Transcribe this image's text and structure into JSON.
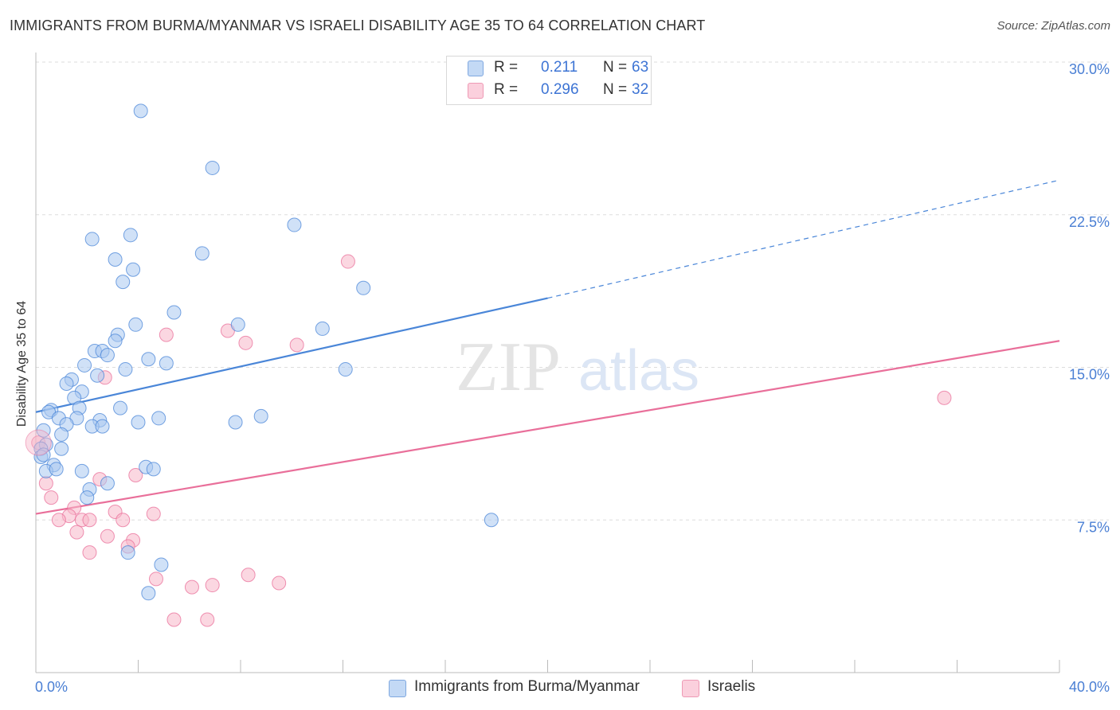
{
  "title": "IMMIGRANTS FROM BURMA/MYANMAR VS ISRAELI DISABILITY AGE 35 TO 64 CORRELATION CHART",
  "source": "Source: ZipAtlas.com",
  "watermark": {
    "zip": "ZIP",
    "atlas": "atlas"
  },
  "legend": {
    "rows": [
      {
        "r_label": "R =",
        "r_value": "0.211",
        "n_label": "N =",
        "n_value": "63",
        "color": "#a9c8f0"
      },
      {
        "r_label": "R =",
        "r_value": "0.296",
        "n_label": "N =",
        "n_value": "32",
        "color": "#f7b6c9"
      }
    ]
  },
  "bottom_legend": [
    {
      "label": "Immigrants from Burma/Myanmar",
      "color": "#a9c8f0"
    },
    {
      "label": "Israelis",
      "color": "#f7b6c9"
    }
  ],
  "chart_data": {
    "type": "scatter",
    "title": "IMMIGRANTS FROM BURMA/MYANMAR VS ISRAELI DISABILITY AGE 35 TO 64 CORRELATION CHART",
    "xlabel": "",
    "ylabel": "Disability Age 35 to 64",
    "xlim": [
      0,
      40
    ],
    "ylim": [
      0,
      30
    ],
    "x_tick_labels": [
      "0.0%",
      "40.0%"
    ],
    "y_ticks": [
      7.5,
      15.0,
      22.5,
      30.0
    ],
    "y_tick_labels": [
      "7.5%",
      "15.0%",
      "22.5%",
      "30.0%"
    ],
    "grid": true,
    "legend_position": "top-center",
    "series": [
      {
        "name": "Immigrants from Burma/Myanmar",
        "color": "#4a86d8",
        "fill": "#a9c8f0",
        "trend": {
          "x": [
            0,
            20
          ],
          "y": [
            12.8,
            18.4
          ],
          "dashed_to": [
            40,
            24.2
          ]
        },
        "points": [
          [
            4.1,
            27.6
          ],
          [
            6.9,
            24.8
          ],
          [
            10.1,
            22.0
          ],
          [
            2.2,
            21.3
          ],
          [
            3.7,
            21.5
          ],
          [
            3.1,
            20.3
          ],
          [
            6.5,
            20.6
          ],
          [
            3.8,
            19.8
          ],
          [
            3.4,
            19.2
          ],
          [
            12.8,
            18.9
          ],
          [
            5.4,
            17.7
          ],
          [
            3.9,
            17.1
          ],
          [
            7.9,
            17.1
          ],
          [
            11.2,
            16.9
          ],
          [
            3.2,
            16.6
          ],
          [
            3.1,
            16.3
          ],
          [
            2.3,
            15.8
          ],
          [
            2.6,
            15.8
          ],
          [
            2.8,
            15.6
          ],
          [
            4.4,
            15.4
          ],
          [
            5.1,
            15.2
          ],
          [
            1.9,
            15.1
          ],
          [
            3.5,
            14.9
          ],
          [
            12.1,
            14.9
          ],
          [
            2.4,
            14.6
          ],
          [
            1.4,
            14.4
          ],
          [
            1.2,
            14.2
          ],
          [
            1.8,
            13.8
          ],
          [
            1.5,
            13.5
          ],
          [
            1.7,
            13.0
          ],
          [
            3.3,
            13.0
          ],
          [
            0.6,
            12.9
          ],
          [
            0.5,
            12.8
          ],
          [
            0.9,
            12.5
          ],
          [
            1.6,
            12.5
          ],
          [
            4.8,
            12.5
          ],
          [
            8.8,
            12.6
          ],
          [
            2.5,
            12.4
          ],
          [
            1.2,
            12.2
          ],
          [
            2.2,
            12.1
          ],
          [
            2.6,
            12.1
          ],
          [
            4.0,
            12.3
          ],
          [
            7.8,
            12.3
          ],
          [
            0.3,
            11.9
          ],
          [
            1.0,
            11.7
          ],
          [
            0.4,
            11.2
          ],
          [
            0.2,
            11.0
          ],
          [
            1.0,
            11.0
          ],
          [
            0.2,
            10.6
          ],
          [
            0.3,
            10.7
          ],
          [
            0.7,
            10.2
          ],
          [
            0.4,
            9.9
          ],
          [
            0.8,
            10.0
          ],
          [
            4.3,
            10.1
          ],
          [
            4.6,
            10.0
          ],
          [
            1.8,
            9.9
          ],
          [
            2.8,
            9.3
          ],
          [
            2.1,
            9.0
          ],
          [
            2.0,
            8.6
          ],
          [
            17.8,
            7.5
          ],
          [
            3.6,
            5.9
          ],
          [
            4.9,
            5.3
          ],
          [
            4.4,
            3.9
          ]
        ]
      },
      {
        "name": "Israelis",
        "color": "#e96f9a",
        "fill": "#f7b6c9",
        "trend": {
          "x": [
            0,
            40
          ],
          "y": [
            7.8,
            16.3
          ]
        },
        "points": [
          [
            0.1,
            11.3
          ],
          [
            12.2,
            20.2
          ],
          [
            5.1,
            16.6
          ],
          [
            7.5,
            16.8
          ],
          [
            8.2,
            16.2
          ],
          [
            10.2,
            16.1
          ],
          [
            35.5,
            13.5
          ],
          [
            2.7,
            14.5
          ],
          [
            0.4,
            9.3
          ],
          [
            2.5,
            9.5
          ],
          [
            3.9,
            9.7
          ],
          [
            0.6,
            8.6
          ],
          [
            1.5,
            8.1
          ],
          [
            3.1,
            7.9
          ],
          [
            4.6,
            7.8
          ],
          [
            1.3,
            7.7
          ],
          [
            0.9,
            7.5
          ],
          [
            1.8,
            7.5
          ],
          [
            2.1,
            7.5
          ],
          [
            3.4,
            7.5
          ],
          [
            1.6,
            6.9
          ],
          [
            2.8,
            6.7
          ],
          [
            3.8,
            6.5
          ],
          [
            3.6,
            6.2
          ],
          [
            2.1,
            5.9
          ],
          [
            4.7,
            4.6
          ],
          [
            8.3,
            4.8
          ],
          [
            6.1,
            4.2
          ],
          [
            6.9,
            4.3
          ],
          [
            9.5,
            4.4
          ],
          [
            5.4,
            2.6
          ],
          [
            6.7,
            2.6
          ]
        ]
      }
    ]
  }
}
